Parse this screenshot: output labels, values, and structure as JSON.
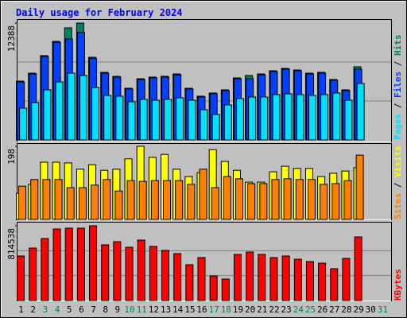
{
  "separator": "/",
  "chart_data": [
    {
      "type": "bar",
      "title": "Daily usage for February 2024",
      "ylim": [
        0,
        12388
      ],
      "yticks": [
        12388
      ],
      "series": [
        {
          "name": "Hits",
          "color": "#00805c",
          "values": [
            6236,
            7079,
            8933,
            10450,
            11882,
            12388,
            8764,
            7163,
            6742,
            5478,
            6489,
            6658,
            6742,
            6995,
            5478,
            4635,
            4972,
            5309,
            6573,
            6826,
            6995,
            7332,
            7584,
            7416,
            7079,
            7163,
            6405,
            5309,
            7753,
            null,
            null
          ]
        },
        {
          "name": "Files",
          "color": "#0040ff",
          "values": [
            6150,
            7000,
            8850,
            10350,
            10700,
            11400,
            8650,
            7080,
            6650,
            5400,
            6400,
            6580,
            6650,
            6900,
            5400,
            4560,
            4900,
            5230,
            6480,
            6500,
            6900,
            7250,
            7500,
            7330,
            7000,
            7080,
            6320,
            5230,
            7500,
            null,
            null
          ]
        },
        {
          "name": "Pages",
          "color": "#00e0ff",
          "values": [
            3371,
            3961,
            5309,
            6152,
            7079,
            6826,
            5562,
            4719,
            4635,
            4045,
            4298,
            4214,
            4298,
            4466,
            4214,
            3202,
            2697,
            3708,
            4382,
            4551,
            4551,
            4803,
            4888,
            4803,
            4719,
            4803,
            4972,
            4214,
            5983,
            null,
            null
          ]
        }
      ]
    },
    {
      "type": "bar",
      "ylim": [
        0,
        198
      ],
      "yticks": [
        198
      ],
      "series": [
        {
          "name": "Visits",
          "color": "#ffff00",
          "values": [
            71,
            95,
            155,
            155,
            153,
            136,
            148,
            133,
            136,
            164,
            198,
            168,
            176,
            136,
            116,
            127,
            189,
            157,
            133,
            101,
            101,
            129,
            144,
            138,
            138,
            116,
            125,
            131,
            140,
            null,
            null
          ]
        },
        {
          "name": "Sites",
          "color": "#ff8000",
          "values": [
            90,
            108,
            108,
            108,
            86,
            86,
            93,
            108,
            77,
            105,
            103,
            105,
            105,
            105,
            95,
            136,
            86,
            116,
            110,
            97,
            97,
            108,
            110,
            108,
            108,
            95,
            97,
            105,
            174,
            null,
            null
          ]
        }
      ]
    },
    {
      "type": "bar",
      "ylim": [
        0,
        814538
      ],
      "yticks": [
        814538
      ],
      "categories": [
        "1",
        "2",
        "3",
        "4",
        "5",
        "6",
        "7",
        "8",
        "9",
        "10",
        "11",
        "12",
        "13",
        "14",
        "15",
        "16",
        "17",
        "18",
        "19",
        "20",
        "21",
        "22",
        "23",
        "24",
        "25",
        "26",
        "27",
        "28",
        "29",
        "30",
        "31"
      ],
      "category_colors": [
        "#000000",
        "#000000",
        "#00805c",
        "#00805c",
        "#000000",
        "#000000",
        "#000000",
        "#000000",
        "#000000",
        "#00805c",
        "#00805c",
        "#000000",
        "#000000",
        "#000000",
        "#000000",
        "#000000",
        "#00805c",
        "#00805c",
        "#000000",
        "#000000",
        "#000000",
        "#000000",
        "#000000",
        "#00805c",
        "#00805c",
        "#000000",
        "#000000",
        "#000000",
        "#000000",
        "#000000",
        "#00805c"
      ],
      "series": [
        {
          "name": "KBytes",
          "color": "#ff0000",
          "values": [
            485240,
            571890,
            675870,
            779850,
            788515,
            788515,
            814538,
            606550,
            641210,
            580555,
            658540,
            589220,
            545895,
            511235,
            389925,
            467910,
            268615,
            233955,
            502570,
            528565,
            502570,
            467910,
            485240,
            450580,
            424585,
            407255,
            346600,
            459245,
            693200,
            null,
            null
          ]
        }
      ]
    }
  ]
}
